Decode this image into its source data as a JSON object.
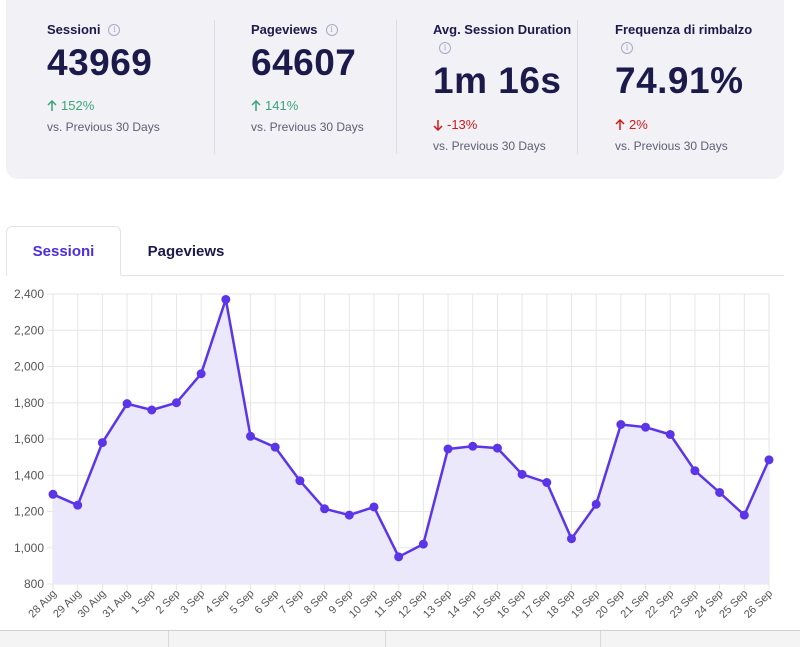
{
  "stats": [
    {
      "label": "Sessioni",
      "value": "43969",
      "change": "152%",
      "direction": "up",
      "compare": "vs. Previous 30 Days"
    },
    {
      "label": "Pageviews",
      "value": "64607",
      "change": "141%",
      "direction": "up",
      "compare": "vs. Previous 30 Days"
    },
    {
      "label": "Avg. Session Duration",
      "value": "1m 16s",
      "change": "-13%",
      "direction": "down",
      "compare": "vs. Previous 30 Days"
    },
    {
      "label": "Frequenza di rimbalzo",
      "value": "74.91%",
      "change": "2%",
      "direction": "up-bad",
      "compare": "vs. Previous 30 Days"
    }
  ],
  "icons": {
    "info": "info-icon",
    "arrow_up": "arrow-up-icon",
    "arrow_down": "arrow-down-icon"
  },
  "colors": {
    "accent": "#4a2ee0",
    "line": "#5b35e8",
    "fill": "#ece8fc",
    "positive": "#3aa578",
    "negative": "#d11a1a"
  },
  "tabs": [
    {
      "label": "Sessioni",
      "active": true
    },
    {
      "label": "Pageviews",
      "active": false
    }
  ],
  "chart_data": {
    "type": "area",
    "series": [
      {
        "values": [
          1295,
          1235,
          1580,
          1795,
          1760,
          1800,
          1960,
          2370,
          1615,
          1555,
          1370,
          1215,
          1180,
          1225,
          950,
          1020,
          1545,
          1560,
          1550,
          1405,
          1360,
          1050,
          1240,
          1680,
          1665,
          1625,
          1425,
          1305,
          1180,
          1485
        ]
      }
    ],
    "x": [
      "28 Aug",
      "29 Aug",
      "30 Aug",
      "31 Aug",
      "1 Sep",
      "2 Sep",
      "3 Sep",
      "4 Sep",
      "5 Sep",
      "6 Sep",
      "7 Sep",
      "8 Sep",
      "9 Sep",
      "10 Sep",
      "11 Sep",
      "12 Sep",
      "13 Sep",
      "14 Sep",
      "15 Sep",
      "16 Sep",
      "17 Sep",
      "18 Sep",
      "19 Sep",
      "20 Sep",
      "21 Sep",
      "22 Sep",
      "23 Sep",
      "24 Sep",
      "25 Sep",
      "26 Sep"
    ],
    "ylim": [
      800,
      2400
    ],
    "yticks": [
      "2,400",
      "2,200",
      "2,000",
      "1,800",
      "1,600",
      "1,400",
      "1,200",
      "1,000",
      "800"
    ],
    "grid": true
  }
}
